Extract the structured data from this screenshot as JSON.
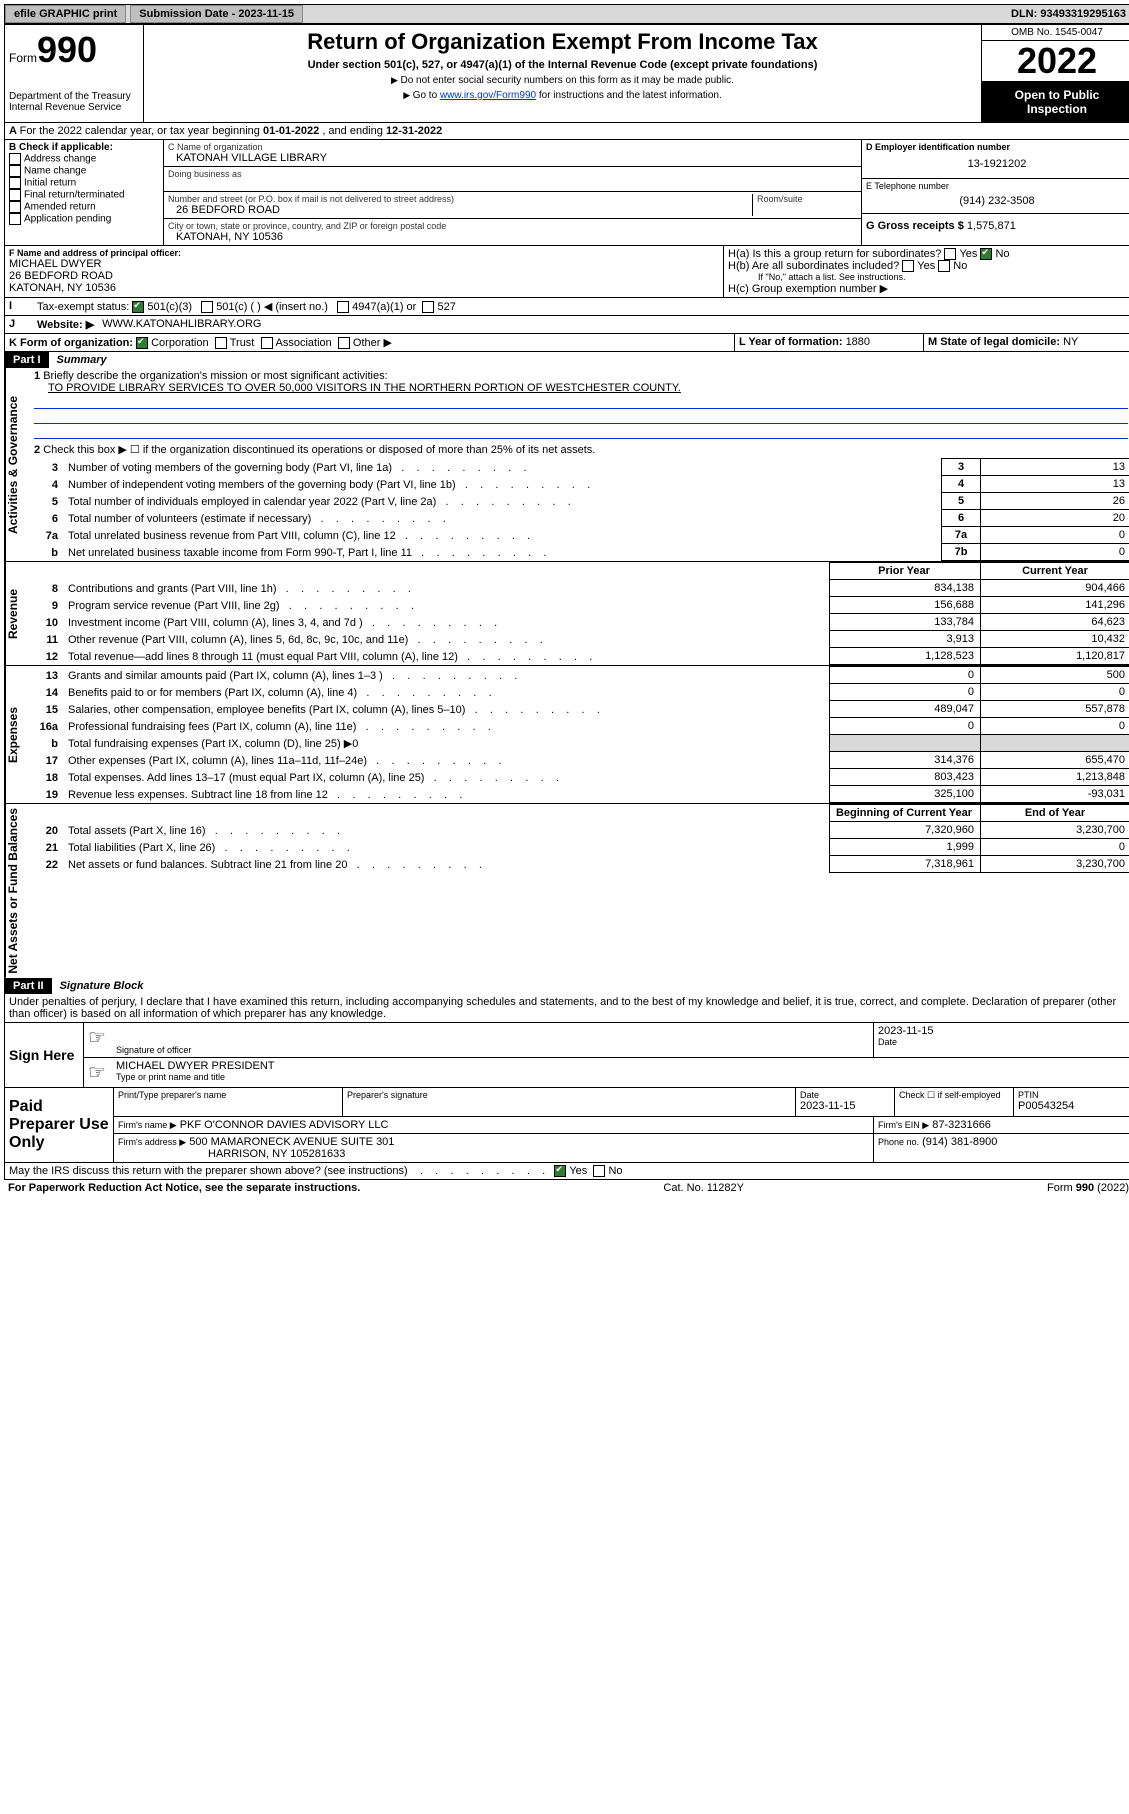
{
  "topbar": {
    "efile": "efile GRAPHIC print",
    "subdate_label": "Submission Date - 2023-11-15",
    "dln_label": "DLN: 93493319295163"
  },
  "header": {
    "form_word": "Form",
    "form_num": "990",
    "dept": "Department of the Treasury",
    "irs": "Internal Revenue Service",
    "title": "Return of Organization Exempt From Income Tax",
    "subtitle": "Under section 501(c), 527, or 4947(a)(1) of the Internal Revenue Code (except private foundations)",
    "instr1": "Do not enter social security numbers on this form as it may be made public.",
    "instr2_a": "Go to ",
    "instr2_link": "www.irs.gov/Form990",
    "instr2_b": " for instructions and the latest information.",
    "omb": "OMB No. 1545-0047",
    "year": "2022",
    "inspect": "Open to Public Inspection"
  },
  "rowA": {
    "text_a": "For the 2022 calendar year, or tax year beginning ",
    "beg": "01-01-2022",
    "text_b": "   , and ending ",
    "end": "12-31-2022"
  },
  "boxB": {
    "label": "B Check if applicable:",
    "items": [
      "Address change",
      "Name change",
      "Initial return",
      "Final return/terminated",
      "Amended return",
      "Application pending"
    ]
  },
  "boxC": {
    "name_label": "C Name of organization",
    "name": "KATONAH VILLAGE LIBRARY",
    "dba_label": "Doing business as",
    "street_label": "Number and street (or P.O. box if mail is not delivered to street address)",
    "room_label": "Room/suite",
    "street": "26 BEDFORD ROAD",
    "city_label": "City or town, state or province, country, and ZIP or foreign postal code",
    "city": "KATONAH, NY  10536"
  },
  "boxD": {
    "label": "D Employer identification number",
    "val": "13-1921202"
  },
  "boxE": {
    "label": "E Telephone number",
    "val": "(914) 232-3508"
  },
  "boxG": {
    "label": "G Gross receipts $",
    "val": "1,575,871"
  },
  "boxF": {
    "label": "F  Name and address of principal officer:",
    "name": "MICHAEL DWYER",
    "street": "26 BEDFORD ROAD",
    "city": "KATONAH, NY  10536"
  },
  "boxH": {
    "ha": "H(a)  Is this a group return for subordinates?",
    "hb": "H(b)  Are all subordinates included?",
    "hb_note": "If \"No,\" attach a list. See instructions.",
    "hc": "H(c)  Group exemption number ▶",
    "yes": "Yes",
    "no": "No"
  },
  "rowI": {
    "label": "Tax-exempt status:",
    "opt1": "501(c)(3)",
    "opt2": "501(c) (  ) ◀ (insert no.)",
    "opt3": "4947(a)(1) or",
    "opt4": "527"
  },
  "rowJ": {
    "label": "Website: ▶",
    "val": "WWW.KATONAHLIBRARY.ORG"
  },
  "rowK": {
    "label": "K Form of organization:",
    "opts": [
      "Corporation",
      "Trust",
      "Association",
      "Other ▶"
    ]
  },
  "rowL": {
    "label": "L Year of formation: ",
    "val": "1880"
  },
  "rowM": {
    "label": "M State of legal domicile: ",
    "val": "NY"
  },
  "part1": {
    "num": "Part I",
    "title": "Summary"
  },
  "summary": {
    "l1_label": "Briefly describe the organization's mission or most significant activities:",
    "l1_text": "TO PROVIDE LIBRARY SERVICES TO OVER 50,000 VISITORS IN THE NORTHERN PORTION OF WESTCHESTER COUNTY.",
    "l2": "Check this box ▶ ☐  if the organization discontinued its operations or disposed of more than 25% of its net assets.",
    "lines_gov": [
      {
        "n": "3",
        "d": "Number of voting members of the governing body (Part VI, line 1a)",
        "box": "3",
        "v": "13"
      },
      {
        "n": "4",
        "d": "Number of independent voting members of the governing body (Part VI, line 1b)",
        "box": "4",
        "v": "13"
      },
      {
        "n": "5",
        "d": "Total number of individuals employed in calendar year 2022 (Part V, line 2a)",
        "box": "5",
        "v": "26"
      },
      {
        "n": "6",
        "d": "Total number of volunteers (estimate if necessary)",
        "box": "6",
        "v": "20"
      },
      {
        "n": "7a",
        "d": "Total unrelated business revenue from Part VIII, column (C), line 12",
        "box": "7a",
        "v": "0"
      },
      {
        "n": "b",
        "d": "Net unrelated business taxable income from Form 990-T, Part I, line 11",
        "box": "7b",
        "v": "0"
      }
    ],
    "col_prior": "Prior Year",
    "col_curr": "Current Year",
    "revenue": [
      {
        "n": "8",
        "d": "Contributions and grants (Part VIII, line 1h)",
        "p": "834,138",
        "c": "904,466"
      },
      {
        "n": "9",
        "d": "Program service revenue (Part VIII, line 2g)",
        "p": "156,688",
        "c": "141,296"
      },
      {
        "n": "10",
        "d": "Investment income (Part VIII, column (A), lines 3, 4, and 7d )",
        "p": "133,784",
        "c": "64,623"
      },
      {
        "n": "11",
        "d": "Other revenue (Part VIII, column (A), lines 5, 6d, 8c, 9c, 10c, and 11e)",
        "p": "3,913",
        "c": "10,432"
      },
      {
        "n": "12",
        "d": "Total revenue—add lines 8 through 11 (must equal Part VIII, column (A), line 12)",
        "p": "1,128,523",
        "c": "1,120,817"
      }
    ],
    "expenses": [
      {
        "n": "13",
        "d": "Grants and similar amounts paid (Part IX, column (A), lines 1–3 )",
        "p": "0",
        "c": "500"
      },
      {
        "n": "14",
        "d": "Benefits paid to or for members (Part IX, column (A), line 4)",
        "p": "0",
        "c": "0"
      },
      {
        "n": "15",
        "d": "Salaries, other compensation, employee benefits (Part IX, column (A), lines 5–10)",
        "p": "489,047",
        "c": "557,878"
      },
      {
        "n": "16a",
        "d": "Professional fundraising fees (Part IX, column (A), line 11e)",
        "p": "0",
        "c": "0"
      },
      {
        "n": "b",
        "d": "Total fundraising expenses (Part IX, column (D), line 25) ▶0",
        "p": "",
        "c": "",
        "shade": true
      },
      {
        "n": "17",
        "d": "Other expenses (Part IX, column (A), lines 11a–11d, 11f–24e)",
        "p": "314,376",
        "c": "655,470"
      },
      {
        "n": "18",
        "d": "Total expenses. Add lines 13–17 (must equal Part IX, column (A), line 25)",
        "p": "803,423",
        "c": "1,213,848"
      },
      {
        "n": "19",
        "d": "Revenue less expenses. Subtract line 18 from line 12",
        "p": "325,100",
        "c": "-93,031"
      }
    ],
    "col_beg": "Beginning of Current Year",
    "col_end": "End of Year",
    "netassets": [
      {
        "n": "20",
        "d": "Total assets (Part X, line 16)",
        "p": "7,320,960",
        "c": "3,230,700"
      },
      {
        "n": "21",
        "d": "Total liabilities (Part X, line 26)",
        "p": "1,999",
        "c": "0"
      },
      {
        "n": "22",
        "d": "Net assets or fund balances. Subtract line 21 from line 20",
        "p": "7,318,961",
        "c": "3,230,700"
      }
    ],
    "vlabels": {
      "gov": "Activities & Governance",
      "rev": "Revenue",
      "exp": "Expenses",
      "net": "Net Assets or Fund Balances"
    }
  },
  "part2": {
    "num": "Part II",
    "title": "Signature Block"
  },
  "sig": {
    "decl": "Under penalties of perjury, I declare that I have examined this return, including accompanying schedules and statements, and to the best of my knowledge and belief, it is true, correct, and complete. Declaration of preparer (other than officer) is based on all information of which preparer has any knowledge.",
    "sign_here": "Sign Here",
    "sig_officer": "Signature of officer",
    "date": "Date",
    "date_val": "2023-11-15",
    "name_title": "MICHAEL DWYER  PRESIDENT",
    "name_title_label": "Type or print name and title",
    "paid": "Paid Preparer Use Only",
    "prep_name_label": "Print/Type preparer's name",
    "prep_sig_label": "Preparer's signature",
    "prep_date": "2023-11-15",
    "check_label": "Check ☐ if self-employed",
    "ptin_label": "PTIN",
    "ptin": "P00543254",
    "firm_name_label": "Firm's name    ▶",
    "firm_name": "PKF O'CONNOR DAVIES ADVISORY LLC",
    "firm_ein_label": "Firm's EIN ▶",
    "firm_ein": "87-3231666",
    "firm_addr_label": "Firm's address ▶",
    "firm_addr1": "500 MAMARONECK AVENUE SUITE 301",
    "firm_addr2": "HARRISON, NY  105281633",
    "phone_label": "Phone no.",
    "phone": "(914) 381-8900",
    "discuss": "May the IRS discuss this return with the preparer shown above? (see instructions)",
    "yes": "Yes",
    "no": "No"
  },
  "footer": {
    "left": "For Paperwork Reduction Act Notice, see the separate instructions.",
    "mid": "Cat. No. 11282Y",
    "right": "Form 990 (2022)"
  },
  "colors": {
    "link": "#0033cc",
    "shade": "#d9d9d9",
    "check": "#2e7d32"
  }
}
